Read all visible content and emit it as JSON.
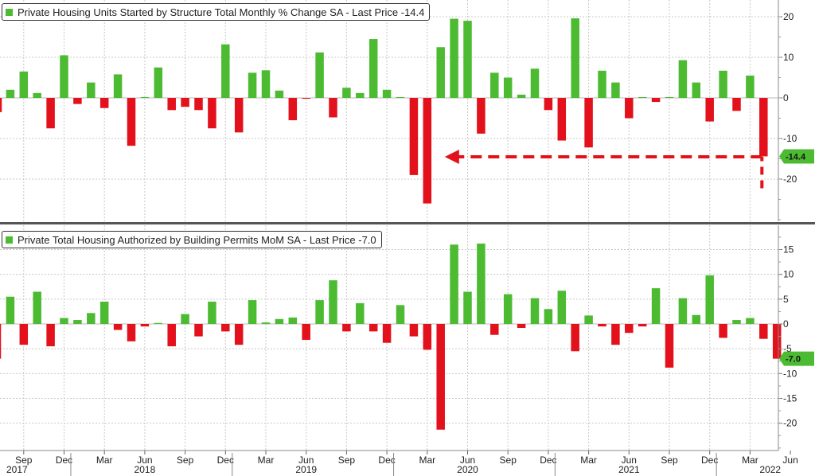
{
  "chart_data": [
    {
      "type": "bar",
      "title": "Private Housing Units Started by Structure Total Monthly % Change SA - Last Price",
      "last_price": "-14.4",
      "last_price_label": "-14.4",
      "ylim": [
        -30,
        22
      ],
      "yticks": [
        -20,
        -10,
        0,
        10,
        20
      ],
      "grid": true,
      "legend": "top-left",
      "positive_color": "#4cbb32",
      "negative_color": "#e3111b",
      "annotation": "red dashed arrow from the latest bar pointing left to the April 2020 low",
      "values": [
        -3.5,
        2.0,
        6.5,
        1.2,
        -7.5,
        10.5,
        -1.5,
        3.8,
        -2.5,
        5.8,
        -11.8,
        0.2,
        7.5,
        -3.0,
        -2.2,
        -3.0,
        -7.5,
        13.2,
        -8.5,
        6.2,
        6.8,
        1.8,
        -5.5,
        -0.2,
        11.2,
        -4.8,
        2.5,
        1.2,
        14.5,
        2.0,
        0.2,
        -19.0,
        -26.0,
        12.5,
        19.5,
        19.0,
        -8.8,
        6.2,
        5.0,
        0.8,
        7.2,
        -3.0,
        -10.5,
        19.6,
        -12.2,
        6.7,
        3.8,
        -5.0,
        0.2,
        -1.0,
        0.2,
        9.3,
        3.8,
        -5.8,
        6.7,
        -3.2,
        5.5,
        -14.4
      ]
    },
    {
      "type": "bar",
      "title": "Private Total Housing Authorized by Building Permits MoM SA - Last Price",
      "last_price": "-7.0",
      "last_price_label": "-7.0",
      "ylim": [
        -25,
        18
      ],
      "yticks": [
        -20,
        -15,
        -10,
        -5,
        0,
        5,
        10,
        15
      ],
      "grid": true,
      "legend": "top-left",
      "positive_color": "#4cbb32",
      "negative_color": "#e3111b",
      "values": [
        -7.0,
        5.5,
        -4.2,
        6.5,
        -4.5,
        1.2,
        0.8,
        2.2,
        4.5,
        -1.2,
        -3.5,
        -0.5,
        0.2,
        -4.5,
        2.0,
        -2.5,
        4.5,
        -1.5,
        -4.2,
        4.8,
        0.3,
        1.0,
        1.3,
        -3.2,
        4.8,
        8.8,
        -1.5,
        4.2,
        -1.5,
        -3.8,
        3.8,
        -2.5,
        -5.2,
        -21.3,
        16.0,
        6.5,
        16.2,
        -2.2,
        6.0,
        -0.8,
        5.2,
        3.0,
        6.7,
        -5.5,
        1.7,
        -0.5,
        -4.2,
        -1.8,
        -0.5,
        7.2,
        -8.8,
        5.2,
        1.8,
        9.8,
        -2.8,
        0.8,
        1.2,
        -3.0,
        -7.0
      ]
    }
  ],
  "x_axis": {
    "month_ticks": [
      {
        "label": "Sep",
        "i": 2
      },
      {
        "label": "Dec",
        "i": 5
      },
      {
        "label": "Mar",
        "i": 8
      },
      {
        "label": "Jun",
        "i": 11
      },
      {
        "label": "Sep",
        "i": 14
      },
      {
        "label": "Dec",
        "i": 17
      },
      {
        "label": "Mar",
        "i": 20
      },
      {
        "label": "Jun",
        "i": 23
      },
      {
        "label": "Sep",
        "i": 26
      },
      {
        "label": "Dec",
        "i": 29
      },
      {
        "label": "Mar",
        "i": 32
      },
      {
        "label": "Jun",
        "i": 35
      },
      {
        "label": "Sep",
        "i": 38
      },
      {
        "label": "Dec",
        "i": 41
      },
      {
        "label": "Mar",
        "i": 44
      },
      {
        "label": "Jun",
        "i": 47
      },
      {
        "label": "Sep",
        "i": 50
      },
      {
        "label": "Dec",
        "i": 53
      },
      {
        "label": "Mar",
        "i": 56
      },
      {
        "label": "Jun",
        "i": 59
      }
    ],
    "year_labels": [
      {
        "label": "2017",
        "i": 1.5
      },
      {
        "label": "2018",
        "i": 11
      },
      {
        "label": "2019",
        "i": 23
      },
      {
        "label": "2020",
        "i": 35
      },
      {
        "label": "2021",
        "i": 47
      },
      {
        "label": "2022",
        "i": 57.5
      }
    ],
    "year_separators": [
      5.5,
      17.5,
      29.5,
      41.5,
      53.5
    ]
  }
}
